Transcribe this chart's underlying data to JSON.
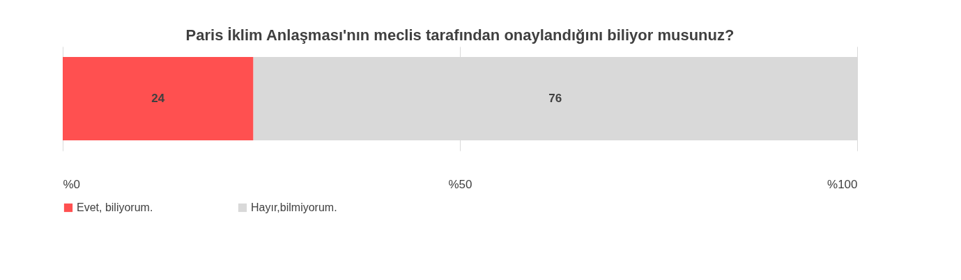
{
  "chart_data": {
    "type": "bar",
    "orientation": "horizontal",
    "stacked": true,
    "title": "Paris İklim Anlaşması'nın meclis tarafından onaylandığını biliyor musunuz?",
    "categories": [
      null
    ],
    "series": [
      {
        "name": "Evet, biliyorum.",
        "color": "#ff5050",
        "values": [
          24
        ]
      },
      {
        "name": "Hayır,bilmiyorum.",
        "color": "#d9d9d9",
        "values": [
          76
        ]
      }
    ],
    "xlim": [
      0,
      100
    ],
    "xticks": [
      {
        "value": 0,
        "label": "%0"
      },
      {
        "value": 50,
        "label": "%50"
      },
      {
        "value": 100,
        "label": "%100"
      }
    ],
    "grid": "x",
    "legend": "bottom",
    "data_labels": true
  }
}
